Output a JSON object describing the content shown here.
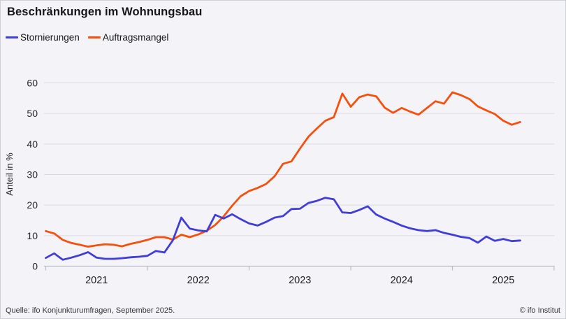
{
  "header": {
    "title": "Beschränkungen im Wohnungsbau"
  },
  "legend": {
    "items": [
      {
        "label": "Stornierungen",
        "color": "#413dd8"
      },
      {
        "label": "Auftragsmangel",
        "color": "#f5500e"
      }
    ]
  },
  "footer": {
    "source": "Quelle: ifo Konjunkturumfragen,  September 2025.",
    "copyright": "© ifo Institut"
  },
  "colors": {
    "background": "#f4f4f8",
    "gridline": "#dadae2",
    "axis": "#bcbcc8",
    "text": "#15151a",
    "stornierungen": "#413dd8",
    "auftragsmangel": "#f5500e"
  },
  "chart_data": {
    "type": "line",
    "title": "Beschränkungen im Wohnungsbau",
    "xlabel": "",
    "ylabel": "Anteil in %",
    "ylim": [
      0,
      60
    ],
    "grid": "horizontal",
    "legend_position": "top-left",
    "y_axis": {
      "ticks": [
        0,
        10,
        20,
        30,
        40,
        50,
        60
      ]
    },
    "x_axis": {
      "year_labels": [
        "2021",
        "2022",
        "2023",
        "2024",
        "2025"
      ]
    },
    "x_months": [
      "2021-01",
      "2021-02",
      "2021-03",
      "2021-04",
      "2021-05",
      "2021-06",
      "2021-07",
      "2021-08",
      "2021-09",
      "2021-10",
      "2021-11",
      "2021-12",
      "2022-01",
      "2022-02",
      "2022-03",
      "2022-04",
      "2022-05",
      "2022-06",
      "2022-07",
      "2022-08",
      "2022-09",
      "2022-10",
      "2022-11",
      "2022-12",
      "2023-01",
      "2023-02",
      "2023-03",
      "2023-04",
      "2023-05",
      "2023-06",
      "2023-07",
      "2023-08",
      "2023-09",
      "2023-10",
      "2023-11",
      "2023-12",
      "2024-01",
      "2024-02",
      "2024-03",
      "2024-04",
      "2024-05",
      "2024-06",
      "2024-07",
      "2024-08",
      "2024-09",
      "2024-10",
      "2024-11",
      "2024-12",
      "2025-01",
      "2025-02",
      "2025-03",
      "2025-04",
      "2025-05",
      "2025-06",
      "2025-07",
      "2025-08",
      "2025-09"
    ],
    "series": [
      {
        "name": "Stornierungen",
        "color": "#413dd8",
        "values": [
          2.7,
          4.2,
          2.1,
          2.8,
          3.6,
          4.6,
          2.8,
          2.4,
          2.4,
          2.6,
          2.9,
          3.1,
          3.4,
          5.0,
          4.5,
          8.5,
          15.9,
          12.3,
          11.7,
          11.4,
          16.8,
          15.6,
          17.0,
          15.4,
          14.0,
          13.3,
          14.5,
          15.9,
          16.4,
          18.7,
          18.8,
          20.7,
          21.4,
          22.4,
          21.9,
          17.6,
          17.4,
          18.4,
          19.6,
          16.9,
          15.6,
          14.5,
          13.3,
          12.4,
          11.8,
          11.5,
          11.8,
          10.9,
          10.3,
          9.6,
          9.2,
          7.7,
          9.7,
          8.3,
          8.9,
          8.2,
          8.4
        ]
      },
      {
        "name": "Auftragsmangel",
        "color": "#f5500e",
        "values": [
          11.5,
          10.7,
          8.6,
          7.6,
          7.0,
          6.4,
          6.8,
          7.2,
          7.0,
          6.5,
          7.3,
          7.9,
          8.6,
          9.5,
          9.5,
          8.7,
          10.3,
          9.5,
          10.4,
          11.6,
          13.5,
          16.3,
          19.8,
          22.9,
          24.6,
          25.6,
          26.9,
          29.4,
          33.5,
          34.3,
          38.5,
          42.4,
          45.1,
          47.6,
          48.8,
          56.5,
          52.2,
          55.3,
          56.2,
          55.6,
          51.9,
          50.2,
          51.8,
          50.6,
          49.6,
          51.8,
          54.0,
          53.2,
          56.9,
          56.0,
          54.7,
          52.3,
          51.0,
          49.8,
          47.6,
          46.3,
          47.2
        ]
      }
    ]
  }
}
